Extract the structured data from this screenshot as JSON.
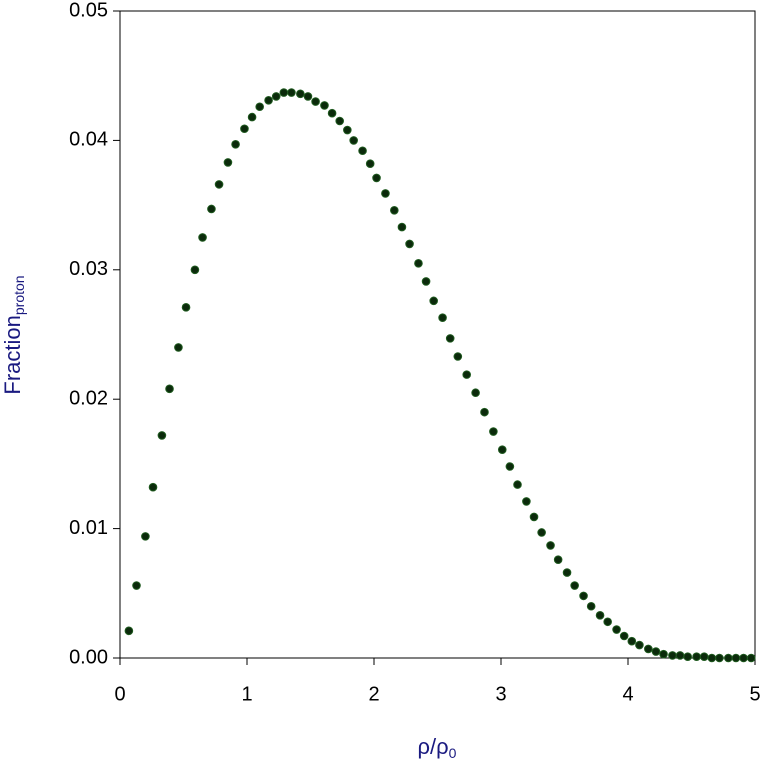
{
  "chart_data": {
    "type": "scatter",
    "xlabel": "ρ/ρ",
    "xlabel_sub": "0",
    "ylabel": "Fraction",
    "ylabel_sub": "proton",
    "xlim": [
      0,
      5
    ],
    "xticks": [
      0,
      1,
      2,
      3,
      4,
      5
    ],
    "ylim": [
      0,
      0.05
    ],
    "yticks": [
      {
        "value": 0,
        "label": "0.00"
      },
      {
        "value": 0.01,
        "label": "0.01"
      },
      {
        "value": 0.02,
        "label": "0.02"
      },
      {
        "value": 0.03,
        "label": "0.03"
      },
      {
        "value": 0.04,
        "label": "0.04"
      },
      {
        "value": 0.05,
        "label": "0.05"
      }
    ],
    "color": "#0b2a0b",
    "x": [
      0.07,
      0.13,
      0.2,
      0.26,
      0.33,
      0.39,
      0.46,
      0.52,
      0.59,
      0.65,
      0.72,
      0.78,
      0.85,
      0.91,
      0.98,
      1.04,
      1.1,
      1.17,
      1.23,
      1.29,
      1.35,
      1.42,
      1.48,
      1.54,
      1.61,
      1.67,
      1.73,
      1.79,
      1.84,
      1.91,
      1.97,
      2.02,
      2.09,
      2.16,
      2.22,
      2.28,
      2.35,
      2.41,
      2.47,
      2.54,
      2.6,
      2.66,
      2.73,
      2.8,
      2.87,
      2.94,
      3.01,
      3.07,
      3.13,
      3.2,
      3.26,
      3.32,
      3.39,
      3.45,
      3.52,
      3.58,
      3.65,
      3.71,
      3.78,
      3.84,
      3.91,
      3.97,
      4.03,
      4.09,
      4.16,
      4.22,
      4.28,
      4.35,
      4.41,
      4.47,
      4.54,
      4.6,
      4.66,
      4.72,
      4.79,
      4.85,
      4.91,
      4.97
    ],
    "values": [
      0.0021,
      0.0056,
      0.0094,
      0.0132,
      0.0172,
      0.0208,
      0.024,
      0.0271,
      0.03,
      0.0325,
      0.0347,
      0.0366,
      0.0383,
      0.0397,
      0.0409,
      0.0418,
      0.0426,
      0.0431,
      0.0434,
      0.0437,
      0.0437,
      0.0436,
      0.0434,
      0.043,
      0.0427,
      0.0421,
      0.0415,
      0.0408,
      0.04,
      0.0392,
      0.0382,
      0.0371,
      0.0359,
      0.0346,
      0.0333,
      0.032,
      0.0305,
      0.0291,
      0.0276,
      0.0263,
      0.0247,
      0.0233,
      0.0219,
      0.0205,
      0.019,
      0.0175,
      0.0161,
      0.0148,
      0.0134,
      0.0121,
      0.0109,
      0.0097,
      0.0087,
      0.0076,
      0.0066,
      0.0056,
      0.0048,
      0.004,
      0.0033,
      0.0028,
      0.0022,
      0.0017,
      0.0013,
      0.001,
      0.0007,
      0.0005,
      0.0003,
      0.0002,
      0.0002,
      0.0001,
      0.0001,
      0.0001,
      0,
      0,
      0,
      0,
      0,
      0
    ]
  }
}
